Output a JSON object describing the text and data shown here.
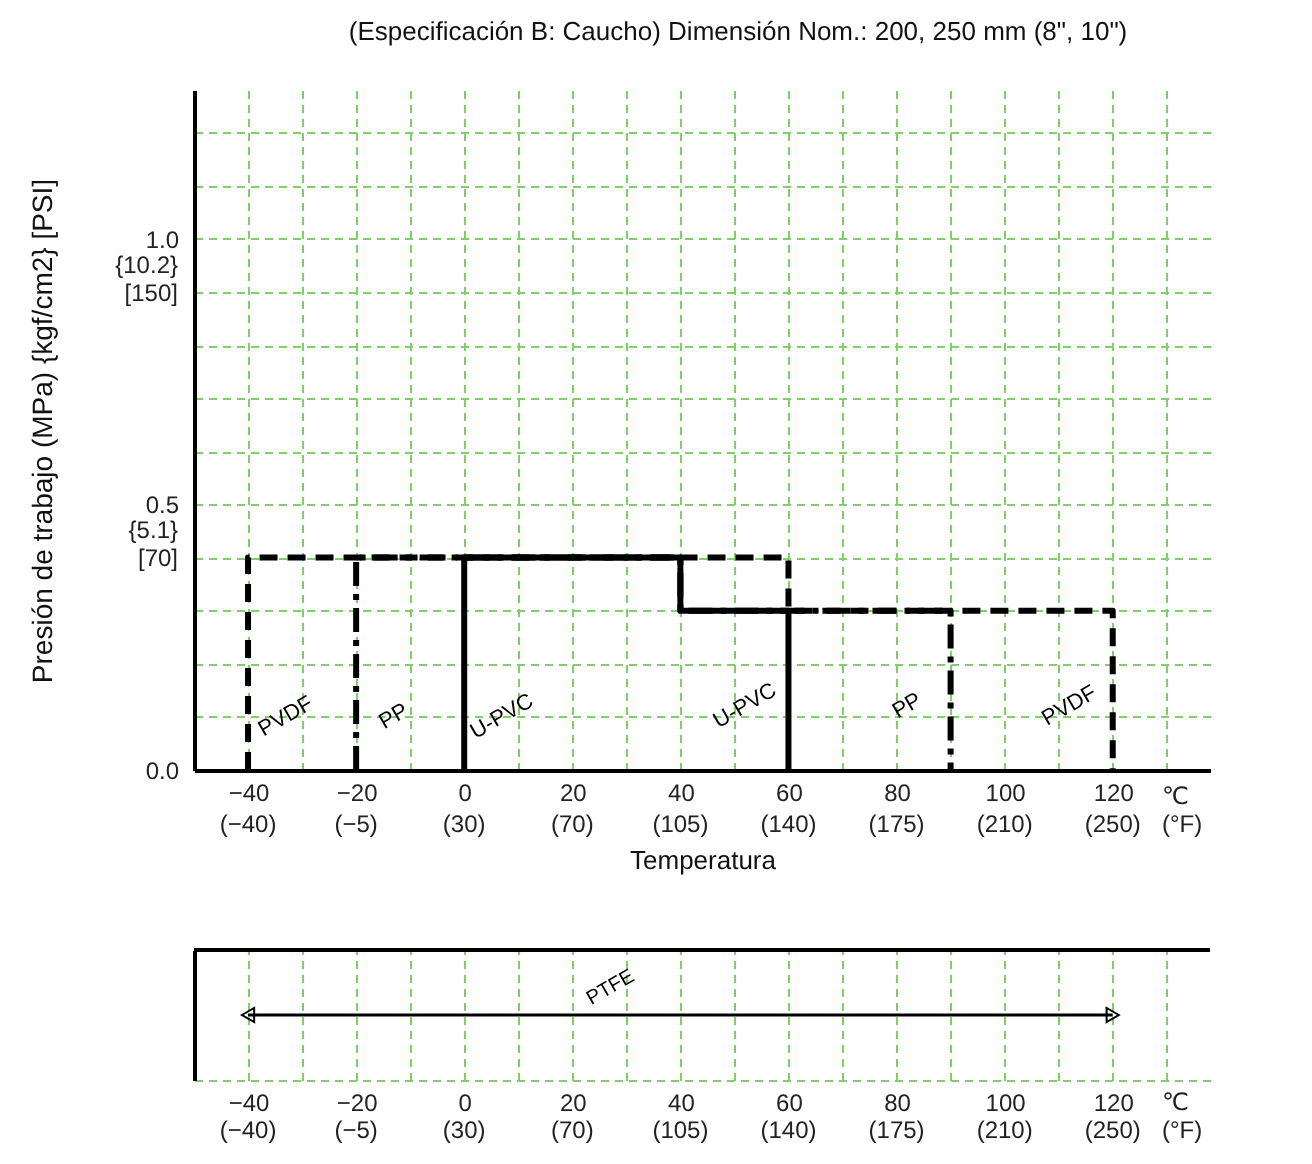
{
  "chart_data": [
    {
      "type": "line",
      "title": "(Especificación B: Caucho) Dimensión Nom.: 200, 250 mm (8\", 10\")",
      "xlabel": "Temperatura",
      "ylabel": "Presión de trabajo (MPa) {kgf/cm2} [PSI]",
      "xlim": [
        -50,
        138
      ],
      "ylim": [
        0,
        1.28
      ],
      "xticks": [
        -40,
        {
          "value": -30,
          "label": null
        },
        -20,
        {
          "value": -10,
          "label": null
        },
        0,
        {
          "value": 10,
          "label": null
        },
        20,
        {
          "value": 30,
          "label": null
        },
        40,
        {
          "value": 50,
          "label": null
        },
        60,
        {
          "value": 70,
          "label": null
        },
        80,
        {
          "value": 90,
          "label": null
        },
        100,
        {
          "value": 110,
          "label": null
        },
        120,
        {
          "value": 130,
          "label": null
        }
      ],
      "yticks": [
        {
          "value": 0,
          "label": "0.0"
        },
        {
          "value": 0.1,
          "label": null
        },
        {
          "value": 0.2,
          "label": null
        },
        {
          "value": 0.3,
          "label": null
        },
        {
          "value": 0.4,
          "label": null
        },
        0.5,
        {
          "value": 0.6,
          "label": null
        },
        {
          "value": 0.7,
          "label": null
        },
        {
          "value": 0.8,
          "label": null
        },
        {
          "value": 0.9,
          "label": null
        },
        {
          "value": 1.0,
          "label": "1.0"
        },
        {
          "value": 1.1,
          "label": null
        },
        {
          "value": 1.2,
          "label": null
        }
      ],
      "grid": true,
      "series": [
        {
          "name": "PVDF",
          "color": "#000000",
          "line_style": "dashed",
          "x": [
            -40,
            -40,
            60,
            60,
            120,
            120
          ],
          "values": [
            0,
            0.4,
            0.4,
            0.3,
            0.3,
            0
          ]
        },
        {
          "name": "PP",
          "color": "#000000",
          "line_style": "dashdot",
          "x": [
            -20,
            -20,
            40,
            40,
            90,
            90
          ],
          "values": [
            0,
            0.4,
            0.4,
            0.3,
            0.3,
            0
          ]
        },
        {
          "name": "U-PVC",
          "color": "#000000",
          "line_style": "solid",
          "x": [
            0,
            0,
            40,
            40,
            60,
            60
          ],
          "values": [
            0,
            0.4,
            0.4,
            0.3,
            0.3,
            0
          ]
        }
      ],
      "annotations": [
        "(−40)",
        "(−5)",
        "(30)",
        "(70)",
        "(105)",
        "(140)",
        "(175)",
        "(210)",
        "(250)",
        "{5.1}\n[70]",
        "{10.2}\n[150]",
        "℃\n(°F)"
      ]
    },
    {
      "type": "bar",
      "orientation": "horizontal",
      "categories": [
        "PTFE"
      ],
      "base": [
        -40
      ],
      "values": [
        160
      ],
      "color": "#000000",
      "xlim": [
        -50,
        138
      ],
      "xticks": [
        -40,
        {
          "value": -30,
          "label": null
        },
        -20,
        {
          "value": -10,
          "label": null
        },
        0,
        {
          "value": 10,
          "label": null
        },
        20,
        {
          "value": 30,
          "label": null
        },
        40,
        {
          "value": 50,
          "label": null
        },
        60,
        {
          "value": 70,
          "label": null
        },
        80,
        {
          "value": 90,
          "label": null
        },
        100,
        {
          "value": 110,
          "label": null
        },
        120,
        {
          "value": 130,
          "label": null
        }
      ],
      "grid": "x",
      "tick_labels": "x",
      "annotations": [
        "(−40)",
        "(−5)",
        "(30)",
        "(70)",
        "(105)",
        "(140)",
        "(175)",
        "(210)",
        "(250)",
        "℃\n(°F)"
      ]
    }
  ]
}
